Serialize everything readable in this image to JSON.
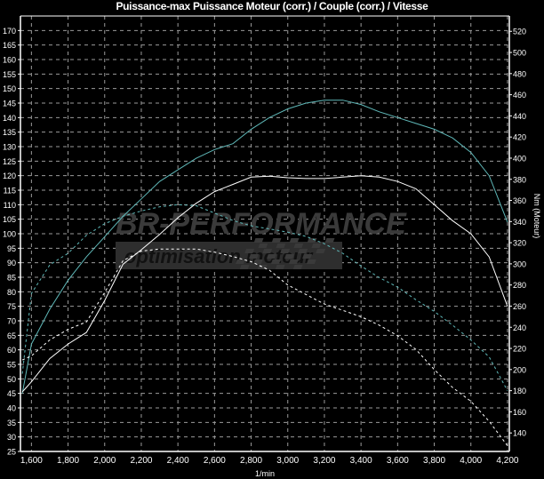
{
  "chart_data": {
    "type": "line",
    "title": "Puissance-max Puissance Moteur (corr.) / Couple (corr.) / Vitesse",
    "xlabel": "1/min",
    "ylabel_left": "",
    "ylabel_right": "Nm (Moteur)",
    "xlim": [
      1540,
      4210
    ],
    "ylim_left": [
      25,
      175
    ],
    "ylim_right": [
      122.5,
      534.5
    ],
    "x_ticks": [
      1600,
      1800,
      2000,
      2200,
      2400,
      2600,
      2800,
      3000,
      3200,
      3400,
      3600,
      3800,
      4000,
      4200
    ],
    "x_tick_labels": [
      "1,600",
      "1,800",
      "2,000",
      "2,200",
      "2,400",
      "2,600",
      "2,800",
      "3,000",
      "3,200",
      "3,400",
      "3,600",
      "3,800",
      "4,000",
      "4,200"
    ],
    "y_left_ticks": [
      25,
      30,
      35,
      40,
      45,
      50,
      55,
      60,
      65,
      70,
      75,
      80,
      85,
      90,
      95,
      100,
      105,
      110,
      115,
      120,
      125,
      130,
      135,
      140,
      145,
      150,
      155,
      160,
      165,
      170
    ],
    "y_right_ticks": [
      140,
      160,
      180,
      200,
      220,
      240,
      260,
      280,
      300,
      320,
      340,
      360,
      380,
      400,
      420,
      440,
      460,
      480,
      500,
      520
    ],
    "grid": true,
    "background": "#000000",
    "x": [
      1550,
      1600,
      1700,
      1800,
      1900,
      2000,
      2100,
      2200,
      2300,
      2400,
      2500,
      2600,
      2700,
      2800,
      2900,
      3000,
      3100,
      3200,
      3300,
      3400,
      3500,
      3600,
      3700,
      3800,
      3900,
      4000,
      4100,
      4200
    ],
    "series": [
      {
        "axis": "left",
        "style": "solid",
        "color": "#5fb8b8",
        "values": [
          45,
          62,
          74,
          84,
          92,
          99,
          106,
          112,
          118,
          122,
          126,
          129,
          131,
          136,
          140,
          143,
          145,
          146,
          146,
          144.5,
          142,
          140,
          138,
          136,
          133,
          128,
          120,
          104
        ]
      },
      {
        "axis": "left",
        "style": "solid",
        "color": "#ffffff",
        "values": [
          45.5,
          49,
          57,
          62,
          66,
          77,
          89.5,
          94.5,
          99.8,
          105.5,
          110.5,
          114.5,
          117,
          119.5,
          119.8,
          119.3,
          119,
          119,
          119.5,
          120,
          119.5,
          118,
          115.5,
          110,
          104.5,
          100,
          92,
          75
        ]
      },
      {
        "axis": "right",
        "style": "dashed",
        "color": "#5fb8b8",
        "values": [
          196,
          272,
          299,
          310,
          327,
          338,
          345,
          350,
          354,
          356,
          355,
          348,
          341,
          336,
          333,
          330,
          326,
          319,
          310,
          298,
          287,
          278,
          266,
          255,
          242,
          228,
          212,
          180
        ]
      },
      {
        "axis": "right",
        "style": "dashed",
        "color": "#ffffff",
        "values": [
          209,
          213,
          228,
          238,
          245,
          273,
          303,
          312,
          314,
          314,
          314,
          311,
          307,
          302,
          294,
          280,
          271,
          262,
          256,
          250,
          242,
          232,
          219,
          200,
          183,
          170,
          151,
          128
        ]
      }
    ]
  },
  "watermark": {
    "brand": "BR-PERFORMANCE",
    "tagline": "optimisation moteur"
  }
}
